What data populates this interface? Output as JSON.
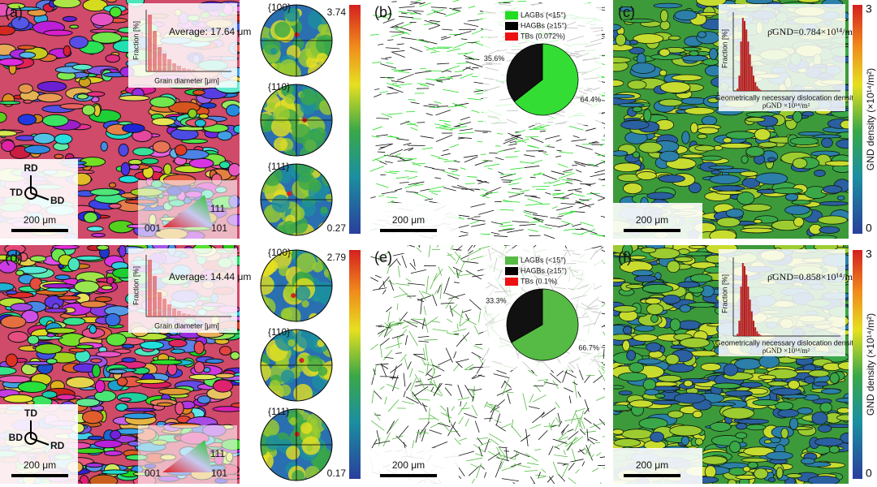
{
  "rows": [
    {
      "ipf": {
        "label": "(a)",
        "inset": {
          "y_label": "Fraction [%]",
          "average": "Average: 17.64 μm",
          "x_label": "Grain diameter [μm]"
        },
        "axes": {
          "up": "RD",
          "left": "TD",
          "right": "BD"
        },
        "scale": "200 μm",
        "triangle": [
          "001",
          "101",
          "111"
        ]
      },
      "pole": {
        "labels": [
          "{100}",
          "{110}",
          "{111}"
        ],
        "max": 3.74,
        "min": 0.27
      },
      "gb": {
        "label": "(b)",
        "legend": [
          "LAGBs (<15°)",
          "HAGBs (≥15°)",
          "TBs (0.072%)"
        ],
        "legend_colors": [
          "#22dd22",
          "#000000",
          "#ee1111"
        ],
        "pie": {
          "values": [
            64.4,
            35.6
          ],
          "value_labels": [
            "64.4%",
            "35.6%"
          ],
          "colors": [
            "#33dd33",
            "#111111"
          ]
        },
        "scale": "200 μm"
      },
      "gnd": {
        "label": "(c)",
        "inset": {
          "mean": "ρ̄GND=0.784×10¹⁴/m²",
          "y_label": "Fraction [%]",
          "x_label": "Geometrically necessary dislocation density",
          "x_unit": "ρGND ×10¹⁴/m²"
        },
        "scale": "200 μm",
        "cbar_max": 3,
        "cbar_min": 0,
        "cbar_title": "GND density (×10¹⁴/m²)"
      }
    },
    {
      "ipf": {
        "label": "(d)",
        "inset": {
          "y_label": "Fraction [%]",
          "average": "Average: 14.44 μm",
          "x_label": "Grain diameter [μm]"
        },
        "axes": {
          "up": "TD",
          "left": "BD",
          "right": "RD"
        },
        "scale": "200 μm",
        "triangle": [
          "001",
          "101",
          "111"
        ]
      },
      "pole": {
        "labels": [
          "{100}",
          "{110}",
          "{111}"
        ],
        "max": 2.79,
        "min": 0.17
      },
      "gb": {
        "label": "(e)",
        "legend": [
          "LAGBs (<15°)",
          "HAGBs (≥15°)",
          "TBs (0.1%)"
        ],
        "legend_colors": [
          "#55bb44",
          "#000000",
          "#ee1111"
        ],
        "pie": {
          "values": [
            66.7,
            33.3
          ],
          "value_labels": [
            "66.7%",
            "33.3%"
          ],
          "colors": [
            "#55bb44",
            "#111111"
          ]
        },
        "scale": "200 μm"
      },
      "gnd": {
        "label": "(f)",
        "inset": {
          "mean": "ρ̄GND=0.858×10¹⁴/m²",
          "y_label": "Fraction [%]",
          "x_label": "Geometrically necessary dislocation density",
          "x_unit": "ρGND ×10¹⁴/m²"
        },
        "scale": "200 μm",
        "cbar_max": 3,
        "cbar_min": 0,
        "cbar_title": "GND density (×10¹⁴/m²)"
      }
    }
  ]
}
